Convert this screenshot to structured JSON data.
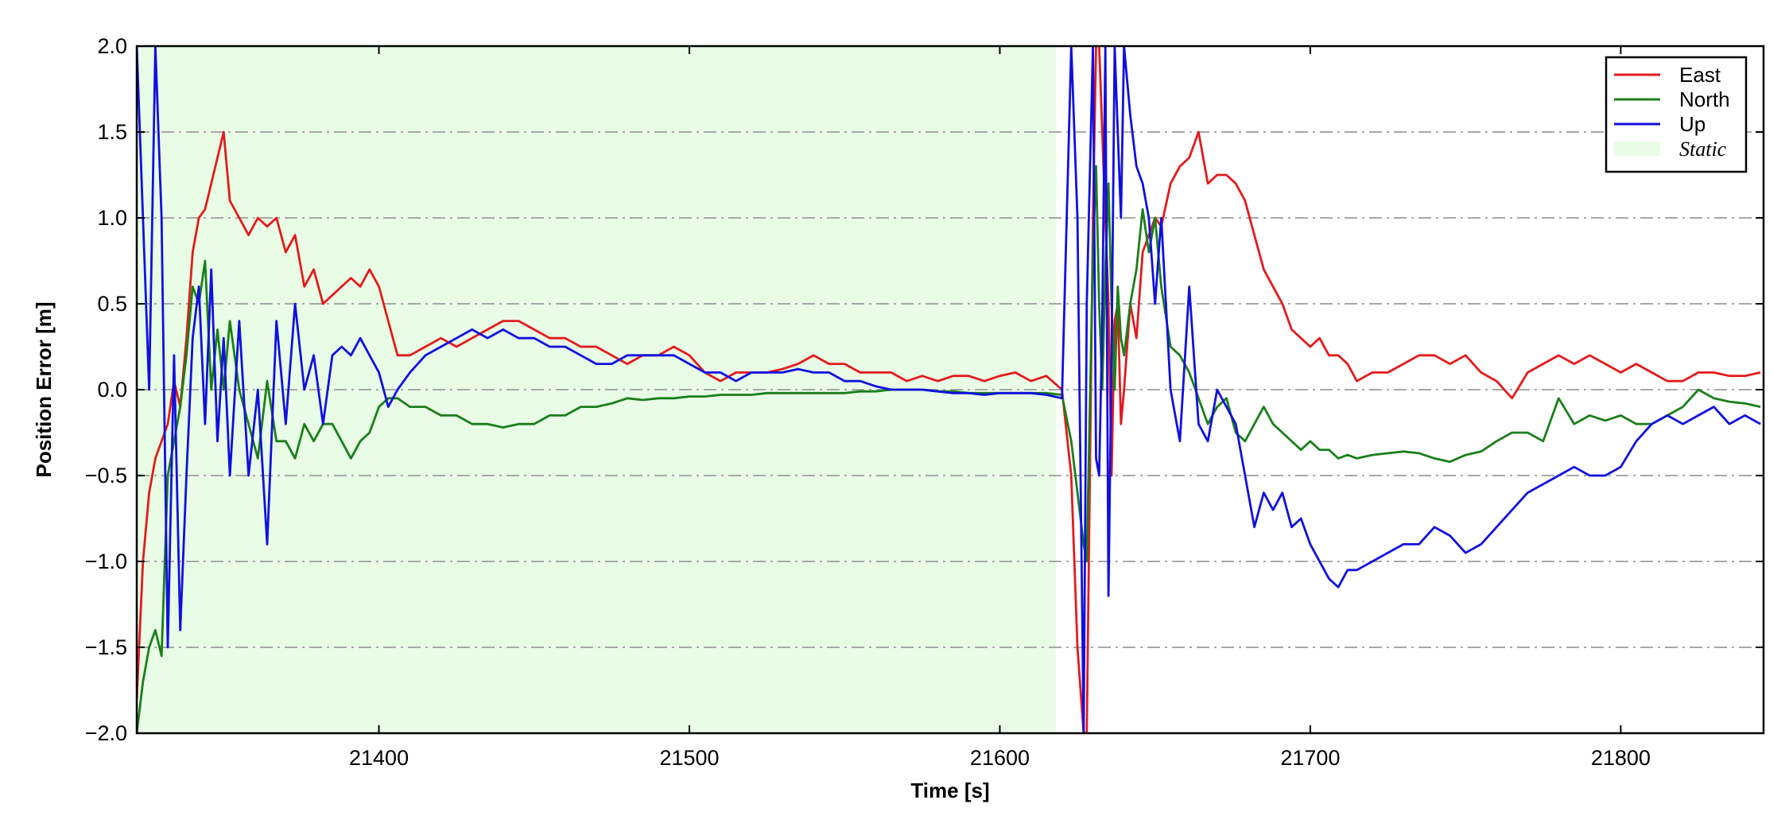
{
  "chart_data": {
    "type": "line",
    "title": "",
    "xlabel": "Time [s]",
    "ylabel": "Position Error [m]",
    "xlim": [
      21322,
      21846
    ],
    "ylim": [
      -2.0,
      2.0
    ],
    "x_ticks": [
      21400,
      21500,
      21600,
      21700,
      21800
    ],
    "y_ticks": [
      -2.0,
      -1.5,
      -1.0,
      -0.5,
      0.0,
      0.5,
      1.0,
      1.5,
      2.0
    ],
    "y_tick_labels": [
      "−2.0",
      "−1.5",
      "−1.0",
      "−0.5",
      "0.0",
      "0.5",
      "1.0",
      "1.5",
      "2.0"
    ],
    "grid": "horizontal dash-dot",
    "legend": "top-right",
    "colors": {
      "east": "#e41a1c",
      "north": "#1a7f1a",
      "up": "#1010e0",
      "static": "#e8fce6",
      "grid": "#a8a8a8"
    },
    "shaded_regions": [
      {
        "name": "Static",
        "x_start": 21322,
        "x_end": 21618
      }
    ],
    "legend_entries": [
      "East",
      "North",
      "Up",
      "Static"
    ],
    "series": [
      {
        "name": "East",
        "color": "#e41a1c",
        "x": [
          21322,
          21324,
          21326,
          21328,
          21330,
          21332,
          21334,
          21336,
          21338,
          21340,
          21342,
          21344,
          21346,
          21348,
          21350,
          21352,
          21355,
          21358,
          21361,
          21364,
          21367,
          21370,
          21373,
          21376,
          21379,
          21382,
          21385,
          21388,
          21391,
          21394,
          21397,
          21400,
          21403,
          21406,
          21410,
          21415,
          21420,
          21425,
          21430,
          21435,
          21440,
          21445,
          21450,
          21455,
          21460,
          21465,
          21470,
          21475,
          21480,
          21485,
          21490,
          21495,
          21500,
          21505,
          21510,
          21515,
          21520,
          21525,
          21530,
          21535,
          21540,
          21545,
          21550,
          21555,
          21560,
          21565,
          21570,
          21575,
          21580,
          21585,
          21590,
          21595,
          21600,
          21605,
          21610,
          21615,
          21620,
          21623,
          21625,
          21627,
          21628,
          21630,
          21631,
          21632,
          21633,
          21634,
          21635,
          21636,
          21637,
          21638,
          21639,
          21640,
          21642,
          21644,
          21646,
          21648,
          21650,
          21652,
          21655,
          21658,
          21661,
          21664,
          21667,
          21670,
          21673,
          21676,
          21679,
          21682,
          21685,
          21688,
          21691,
          21694,
          21697,
          21700,
          21703,
          21706,
          21709,
          21712,
          21715,
          21720,
          21725,
          21730,
          21735,
          21740,
          21745,
          21750,
          21755,
          21760,
          21765,
          21770,
          21775,
          21780,
          21785,
          21790,
          21795,
          21800,
          21805,
          21810,
          21815,
          21820,
          21825,
          21830,
          21835,
          21840,
          21845
        ],
        "y": [
          -1.8,
          -1.0,
          -0.6,
          -0.4,
          -0.3,
          -0.2,
          0.05,
          -0.1,
          0.3,
          0.8,
          1.0,
          1.05,
          1.2,
          1.35,
          1.5,
          1.1,
          1.0,
          0.9,
          1.0,
          0.95,
          1.0,
          0.8,
          0.9,
          0.6,
          0.7,
          0.5,
          0.55,
          0.6,
          0.65,
          0.6,
          0.7,
          0.6,
          0.4,
          0.2,
          0.2,
          0.25,
          0.3,
          0.25,
          0.3,
          0.35,
          0.4,
          0.4,
          0.35,
          0.3,
          0.3,
          0.25,
          0.25,
          0.2,
          0.15,
          0.2,
          0.2,
          0.25,
          0.2,
          0.1,
          0.05,
          0.1,
          0.1,
          0.1,
          0.12,
          0.15,
          0.2,
          0.15,
          0.15,
          0.1,
          0.1,
          0.1,
          0.05,
          0.08,
          0.05,
          0.08,
          0.08,
          0.05,
          0.08,
          0.1,
          0.05,
          0.08,
          0.0,
          -0.5,
          -1.5,
          -2.0,
          -2.0,
          1.0,
          2.0,
          2.0,
          1.5,
          1.0,
          0.5,
          -0.5,
          0.4,
          0.5,
          -0.2,
          0.0,
          0.5,
          0.3,
          0.8,
          0.9,
          1.0,
          0.95,
          1.2,
          1.3,
          1.35,
          1.5,
          1.2,
          1.25,
          1.25,
          1.2,
          1.1,
          0.9,
          0.7,
          0.6,
          0.5,
          0.35,
          0.3,
          0.25,
          0.3,
          0.2,
          0.2,
          0.15,
          0.05,
          0.1,
          0.1,
          0.15,
          0.2,
          0.2,
          0.15,
          0.2,
          0.1,
          0.05,
          -0.05,
          0.1,
          0.15,
          0.2,
          0.15,
          0.2,
          0.15,
          0.1,
          0.15,
          0.1,
          0.05,
          0.05,
          0.1,
          0.1,
          0.08,
          0.08,
          0.1
        ]
      },
      {
        "name": "North",
        "color": "#1a7f1a",
        "x": [
          21322,
          21324,
          21326,
          21328,
          21330,
          21332,
          21334,
          21336,
          21338,
          21340,
          21342,
          21344,
          21346,
          21348,
          21350,
          21352,
          21355,
          21358,
          21361,
          21364,
          21367,
          21370,
          21373,
          21376,
          21379,
          21382,
          21385,
          21388,
          21391,
          21394,
          21397,
          21400,
          21403,
          21406,
          21410,
          21415,
          21420,
          21425,
          21430,
          21435,
          21440,
          21445,
          21450,
          21455,
          21460,
          21465,
          21470,
          21475,
          21480,
          21485,
          21490,
          21495,
          21500,
          21505,
          21510,
          21515,
          21520,
          21525,
          21530,
          21535,
          21540,
          21545,
          21550,
          21555,
          21560,
          21565,
          21570,
          21575,
          21580,
          21585,
          21590,
          21595,
          21600,
          21605,
          21610,
          21615,
          21620,
          21623,
          21625,
          21627,
          21628,
          21630,
          21631,
          21632,
          21633,
          21634,
          21635,
          21636,
          21637,
          21638,
          21639,
          21640,
          21642,
          21644,
          21646,
          21648,
          21650,
          21652,
          21655,
          21658,
          21661,
          21664,
          21667,
          21670,
          21673,
          21676,
          21679,
          21682,
          21685,
          21688,
          21691,
          21694,
          21697,
          21700,
          21703,
          21706,
          21709,
          21712,
          21715,
          21720,
          21725,
          21730,
          21735,
          21740,
          21745,
          21750,
          21755,
          21760,
          21765,
          21770,
          21775,
          21780,
          21785,
          21790,
          21795,
          21800,
          21805,
          21810,
          21815,
          21820,
          21825,
          21830,
          21835,
          21840,
          21845
        ],
        "y": [
          -2.0,
          -1.7,
          -1.5,
          -1.4,
          -1.55,
          -0.5,
          -0.3,
          -0.1,
          0.2,
          0.6,
          0.5,
          0.75,
          0.0,
          0.35,
          0.0,
          0.4,
          0.0,
          -0.2,
          -0.4,
          0.05,
          -0.3,
          -0.3,
          -0.4,
          -0.2,
          -0.3,
          -0.2,
          -0.2,
          -0.3,
          -0.4,
          -0.3,
          -0.25,
          -0.1,
          -0.05,
          -0.05,
          -0.1,
          -0.1,
          -0.15,
          -0.15,
          -0.2,
          -0.2,
          -0.22,
          -0.2,
          -0.2,
          -0.15,
          -0.15,
          -0.1,
          -0.1,
          -0.08,
          -0.05,
          -0.06,
          -0.05,
          -0.05,
          -0.04,
          -0.04,
          -0.03,
          -0.03,
          -0.03,
          -0.02,
          -0.02,
          -0.02,
          -0.02,
          -0.02,
          -0.02,
          -0.01,
          -0.01,
          0.0,
          0.0,
          0.0,
          -0.01,
          -0.01,
          -0.02,
          -0.02,
          -0.02,
          -0.02,
          -0.02,
          -0.02,
          -0.03,
          -0.3,
          -0.6,
          -0.9,
          -1.0,
          0.8,
          1.3,
          0.5,
          0.0,
          0.7,
          1.2,
          0.5,
          0.0,
          0.6,
          0.3,
          0.2,
          0.5,
          0.7,
          1.05,
          0.8,
          1.0,
          0.6,
          0.25,
          0.2,
          0.1,
          -0.05,
          -0.2,
          -0.1,
          -0.05,
          -0.25,
          -0.3,
          -0.2,
          -0.1,
          -0.2,
          -0.25,
          -0.3,
          -0.35,
          -0.3,
          -0.35,
          -0.35,
          -0.4,
          -0.38,
          -0.4,
          -0.38,
          -0.37,
          -0.36,
          -0.37,
          -0.4,
          -0.42,
          -0.38,
          -0.36,
          -0.3,
          -0.25,
          -0.25,
          -0.3,
          -0.05,
          -0.2,
          -0.15,
          -0.18,
          -0.15,
          -0.2,
          -0.2,
          -0.15,
          -0.1,
          0.0,
          -0.05,
          -0.07,
          -0.08,
          -0.1
        ]
      },
      {
        "name": "Up",
        "color": "#1010e0",
        "x": [
          21322,
          21324,
          21326,
          21328,
          21330,
          21332,
          21334,
          21336,
          21338,
          21340,
          21342,
          21344,
          21346,
          21348,
          21350,
          21352,
          21355,
          21358,
          21361,
          21364,
          21367,
          21370,
          21373,
          21376,
          21379,
          21382,
          21385,
          21388,
          21391,
          21394,
          21397,
          21400,
          21403,
          21406,
          21410,
          21415,
          21420,
          21425,
          21430,
          21435,
          21440,
          21445,
          21450,
          21455,
          21460,
          21465,
          21470,
          21475,
          21480,
          21485,
          21490,
          21495,
          21500,
          21505,
          21510,
          21515,
          21520,
          21525,
          21530,
          21535,
          21540,
          21545,
          21550,
          21555,
          21560,
          21565,
          21570,
          21575,
          21580,
          21585,
          21590,
          21595,
          21600,
          21605,
          21610,
          21615,
          21620,
          21623,
          21625,
          21627,
          21628,
          21630,
          21631,
          21632,
          21633,
          21634,
          21635,
          21636,
          21637,
          21638,
          21639,
          21640,
          21642,
          21644,
          21646,
          21648,
          21650,
          21652,
          21655,
          21658,
          21661,
          21664,
          21667,
          21670,
          21673,
          21676,
          21679,
          21682,
          21685,
          21688,
          21691,
          21694,
          21697,
          21700,
          21703,
          21706,
          21709,
          21712,
          21715,
          21720,
          21725,
          21730,
          21735,
          21740,
          21745,
          21750,
          21755,
          21760,
          21765,
          21770,
          21775,
          21780,
          21785,
          21790,
          21795,
          21800,
          21805,
          21810,
          21815,
          21820,
          21825,
          21830,
          21835,
          21840,
          21845
        ],
        "y": [
          2.0,
          1.0,
          0.0,
          2.0,
          1.0,
          -1.5,
          0.2,
          -1.4,
          -0.5,
          0.3,
          0.6,
          -0.2,
          0.7,
          -0.3,
          0.3,
          -0.5,
          0.4,
          -0.5,
          0.0,
          -0.9,
          0.4,
          -0.2,
          0.5,
          0.0,
          0.2,
          -0.2,
          0.2,
          0.25,
          0.2,
          0.3,
          0.2,
          0.1,
          -0.1,
          0.0,
          0.1,
          0.2,
          0.25,
          0.3,
          0.35,
          0.3,
          0.35,
          0.3,
          0.3,
          0.25,
          0.25,
          0.2,
          0.15,
          0.15,
          0.2,
          0.2,
          0.2,
          0.2,
          0.15,
          0.1,
          0.1,
          0.05,
          0.1,
          0.1,
          0.1,
          0.12,
          0.1,
          0.1,
          0.05,
          0.05,
          0.02,
          0.0,
          0.0,
          0.0,
          -0.01,
          -0.02,
          -0.02,
          -0.03,
          -0.02,
          -0.02,
          -0.02,
          -0.03,
          -0.05,
          2.0,
          1.0,
          -2.0,
          0.5,
          2.0,
          -0.4,
          -0.5,
          0.4,
          2.0,
          -1.2,
          0.2,
          2.0,
          1.5,
          1.0,
          2.0,
          1.6,
          1.3,
          1.2,
          1.0,
          0.5,
          1.0,
          0.0,
          -0.3,
          0.6,
          -0.2,
          -0.3,
          0.0,
          -0.1,
          -0.2,
          -0.5,
          -0.8,
          -0.6,
          -0.7,
          -0.6,
          -0.8,
          -0.75,
          -0.9,
          -1.0,
          -1.1,
          -1.15,
          -1.05,
          -1.05,
          -1.0,
          -0.95,
          -0.9,
          -0.9,
          -0.8,
          -0.85,
          -0.95,
          -0.9,
          -0.8,
          -0.7,
          -0.6,
          -0.55,
          -0.5,
          -0.45,
          -0.5,
          -0.5,
          -0.45,
          -0.3,
          -0.2,
          -0.15,
          -0.2,
          -0.15,
          -0.1,
          -0.2,
          -0.15,
          -0.2
        ]
      }
    ]
  }
}
